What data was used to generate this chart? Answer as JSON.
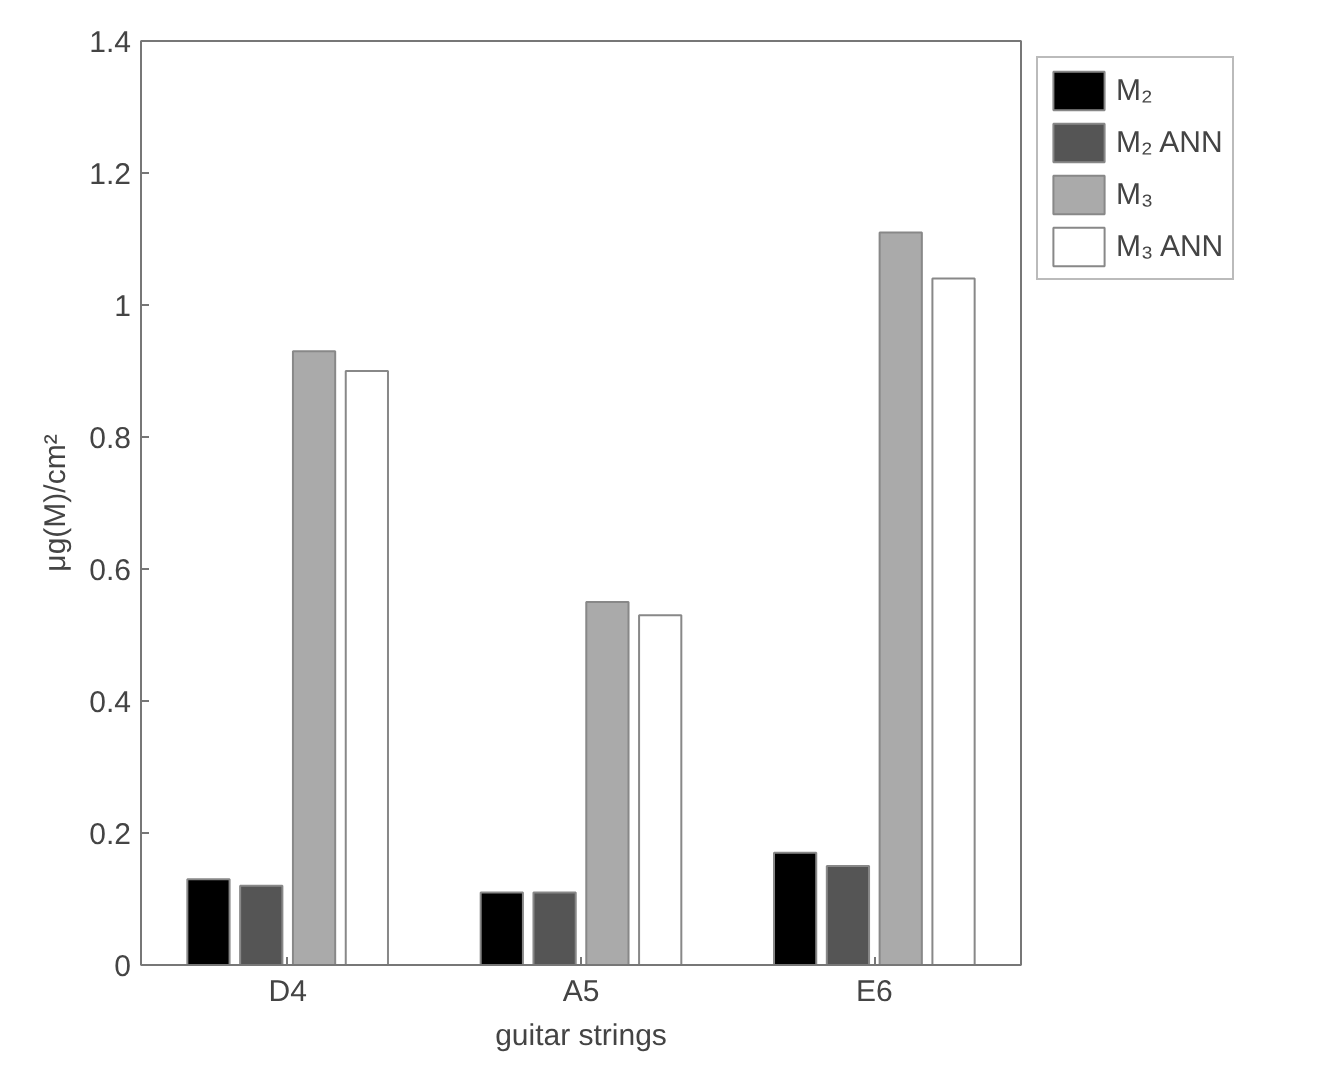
{
  "chart_data": {
    "type": "bar",
    "xlabel": "guitar strings",
    "ylabel": "μg(M)/cm²",
    "categories": [
      "D4",
      "A5",
      "E6"
    ],
    "series": [
      {
        "name": "M₂",
        "color": "#000000",
        "values": [
          0.13,
          0.11,
          0.17
        ]
      },
      {
        "name": "M₂ ANN",
        "color": "#555555",
        "values": [
          0.12,
          0.11,
          0.15
        ]
      },
      {
        "name": "M₃",
        "color": "#aaaaaa",
        "values": [
          0.93,
          0.55,
          1.11
        ]
      },
      {
        "name": "M₃ ANN",
        "color": "#ffffff",
        "values": [
          0.9,
          0.53,
          1.04
        ]
      }
    ],
    "ylim": [
      0,
      1.4
    ],
    "yticks": [
      0,
      0.2,
      0.4,
      0.6,
      0.8,
      1,
      1.2,
      1.4
    ],
    "grid": false,
    "legend": "right"
  }
}
